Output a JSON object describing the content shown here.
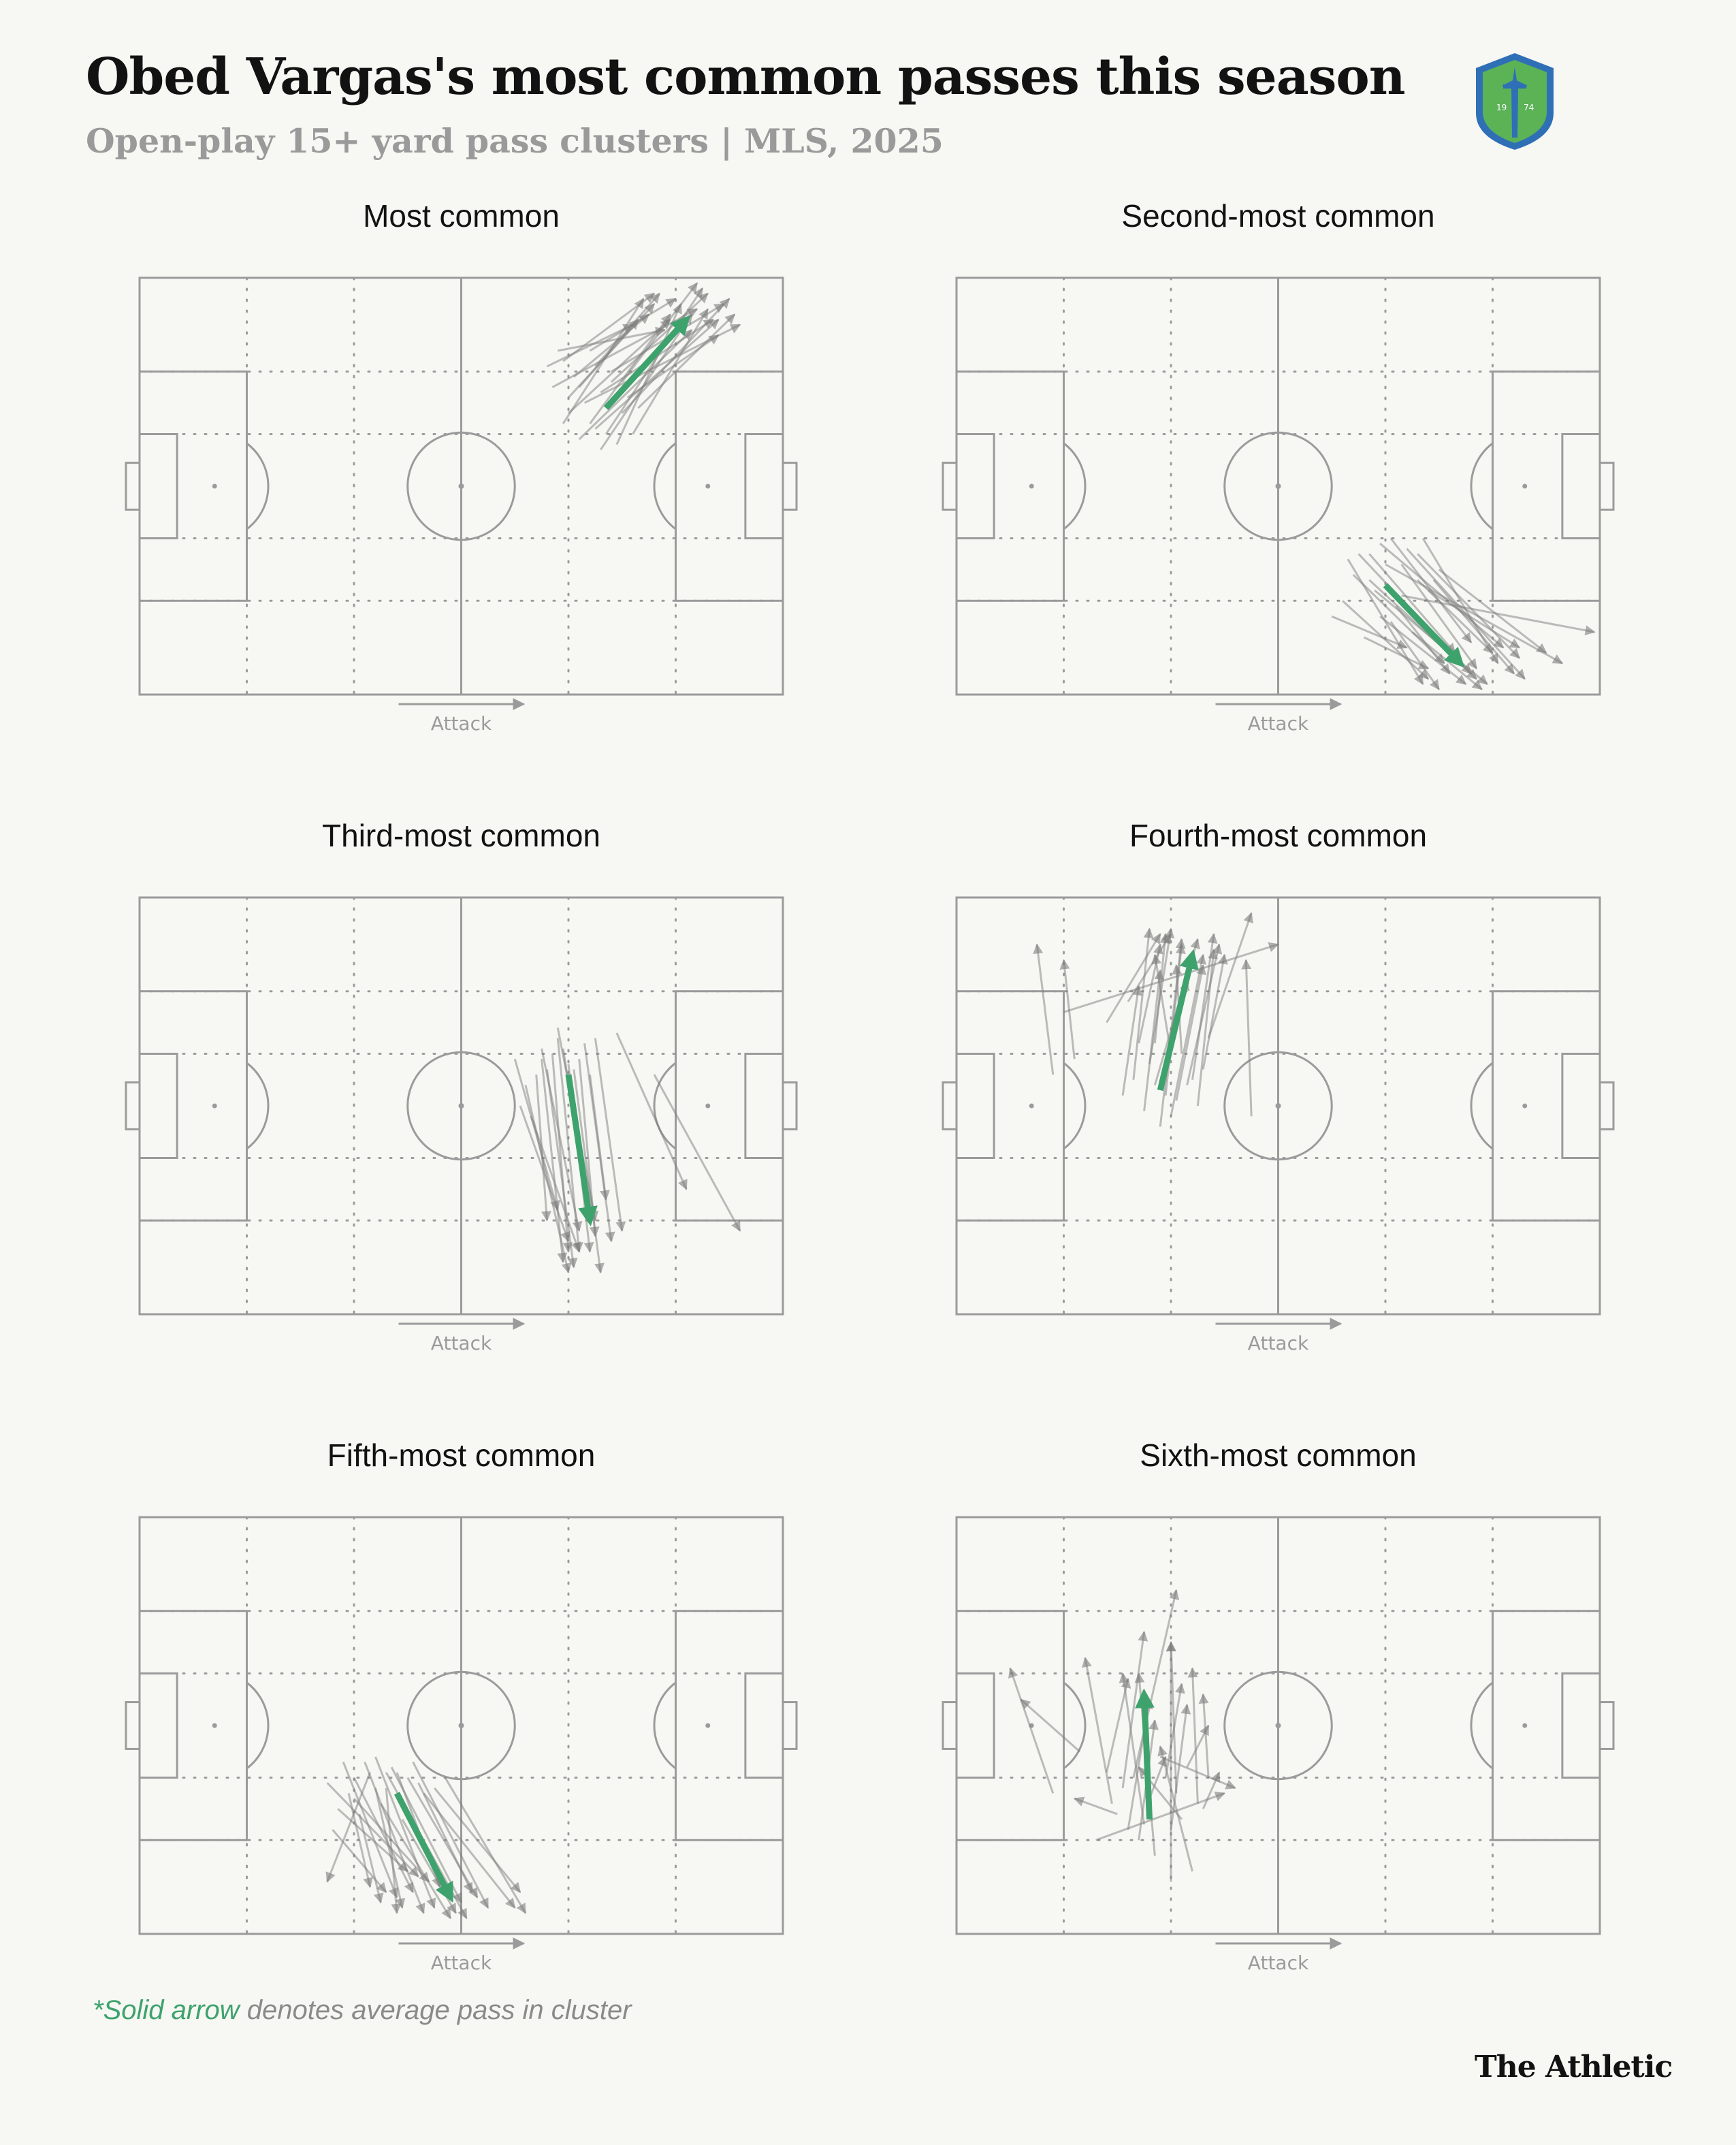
{
  "header": {
    "title": "Obed Vargas's most common passes this season",
    "subtitle": "Open-play 15+ yard pass clusters | MLS, 2025"
  },
  "logo": {
    "icon": "seattle-sounders-crest-icon",
    "year_left": "19",
    "year_right": "74"
  },
  "colors": {
    "accent": "#3ea26d",
    "pass": "#7d7d7d",
    "pitch_line": "#9b9b9b",
    "background": "#f7f7f3",
    "subtitle": "#9a9a9a"
  },
  "pitch_label": "Attack",
  "footnote": {
    "accent_text": "*Solid arrow",
    "rest_text": " denotes average pass in cluster"
  },
  "brand": "The Athletic",
  "chart_data": {
    "type": "pass-map",
    "pitch": {
      "length": 120,
      "width": 80,
      "attack_direction": "left-to-right"
    },
    "panels": [
      {
        "title": "Most common",
        "average": [
          87,
          55,
          102,
          72
        ],
        "passes": [
          [
            76,
            63,
            92,
            71
          ],
          [
            80,
            57,
            96,
            75
          ],
          [
            84,
            52,
            99,
            73
          ],
          [
            88,
            60,
            106,
            77
          ],
          [
            82,
            49,
            103,
            70
          ],
          [
            90,
            54,
            110,
            76
          ],
          [
            78,
            66,
            98,
            70
          ],
          [
            86,
            58,
            107,
            72
          ],
          [
            79,
            52,
            94,
            76
          ],
          [
            92,
            50,
            106,
            74
          ],
          [
            85,
            63,
            97,
            77
          ],
          [
            83,
            56,
            112,
            71
          ],
          [
            89,
            48,
            101,
            75
          ],
          [
            77,
            59,
            104,
            74
          ],
          [
            91,
            57,
            108,
            69
          ],
          [
            81,
            61,
            95,
            73
          ],
          [
            87,
            50,
            105,
            78
          ],
          [
            84,
            66,
            100,
            76
          ],
          [
            93,
            55,
            111,
            73
          ],
          [
            80,
            54,
            99,
            72
          ],
          [
            88,
            62,
            109,
            75
          ],
          [
            82,
            59,
            93,
            72
          ],
          [
            86,
            47,
            103,
            73
          ],
          [
            90,
            60,
            104,
            79
          ],
          [
            79,
            64,
            96,
            77
          ],
          [
            85,
            51,
            108,
            72
          ]
        ]
      },
      {
        "title": "Second-most common",
        "average": [
          80,
          21,
          94,
          6
        ],
        "passes": [
          [
            72,
            18,
            88,
            3
          ],
          [
            77,
            27,
            93,
            8
          ],
          [
            83,
            25,
            97,
            5
          ],
          [
            79,
            15,
            95,
            2
          ],
          [
            86,
            22,
            100,
            8
          ],
          [
            74,
            23,
            91,
            6
          ],
          [
            81,
            30,
            96,
            10
          ],
          [
            88,
            20,
            105,
            9
          ],
          [
            76,
            11,
            88,
            5
          ],
          [
            84,
            28,
            106,
            3
          ],
          [
            70,
            15,
            84,
            9
          ],
          [
            90,
            24,
            110,
            8
          ],
          [
            78,
            20,
            99,
            2
          ],
          [
            82,
            17,
            92,
            4
          ],
          [
            87,
            30,
            101,
            6
          ],
          [
            75,
            27,
            96,
            4
          ],
          [
            85,
            12,
            98,
            1
          ],
          [
            80,
            25,
            113,
            6
          ],
          [
            89,
            22,
            104,
            4
          ],
          [
            73,
            26,
            87,
            2
          ],
          [
            83,
            19,
            119,
            12
          ],
          [
            77,
            22,
            97,
            3
          ],
          [
            86,
            27,
            105,
            7
          ],
          [
            79,
            29,
            102,
            9
          ],
          [
            81,
            14,
            90,
            1
          ]
        ]
      },
      {
        "title": "Third-most common",
        "average": [
          80,
          46,
          84,
          18
        ],
        "passes": [
          [
            70,
            49,
            78,
            20
          ],
          [
            75,
            51,
            82,
            16
          ],
          [
            80,
            48,
            84,
            12
          ],
          [
            72,
            44,
            80,
            8
          ],
          [
            78,
            55,
            85,
            18
          ],
          [
            83,
            52,
            88,
            14
          ],
          [
            74,
            46,
            76,
            18
          ],
          [
            81,
            47,
            86,
            8
          ],
          [
            89,
            54,
            102,
            24
          ],
          [
            77,
            50,
            80,
            12
          ],
          [
            85,
            53,
            90,
            16
          ],
          [
            73,
            38,
            82,
            12
          ],
          [
            79,
            51,
            84,
            18
          ],
          [
            76,
            47,
            81,
            9
          ],
          [
            82,
            49,
            85,
            15
          ],
          [
            71,
            40,
            80,
            14
          ],
          [
            96,
            46,
            112,
            16
          ],
          [
            78,
            53,
            82,
            12
          ],
          [
            84,
            46,
            87,
            22
          ],
          [
            75,
            49,
            79,
            10
          ]
        ]
      },
      {
        "title": "Fourth-most common",
        "average": [
          38,
          43,
          44,
          69
        ],
        "passes": [
          [
            36,
            48,
            40,
            74
          ],
          [
            39,
            42,
            42,
            71
          ],
          [
            42,
            50,
            41,
            67
          ],
          [
            44,
            45,
            48,
            73
          ],
          [
            34,
            52,
            38,
            71
          ],
          [
            40,
            38,
            46,
            69
          ],
          [
            37,
            44,
            45,
            72
          ],
          [
            45,
            40,
            48,
            70
          ],
          [
            33,
            45,
            36,
            74
          ],
          [
            41,
            41,
            46,
            67
          ],
          [
            20,
            58,
            60,
            71
          ],
          [
            18,
            46,
            15,
            71
          ],
          [
            22,
            49,
            20,
            68
          ],
          [
            28,
            56,
            38,
            73
          ],
          [
            32,
            60,
            40,
            73
          ],
          [
            38,
            36,
            42,
            72
          ],
          [
            40,
            50,
            37,
            69
          ],
          [
            47,
            53,
            55,
            77
          ],
          [
            35,
            39,
            38,
            66
          ],
          [
            43,
            44,
            49,
            71
          ],
          [
            55,
            38,
            54,
            68
          ],
          [
            39,
            48,
            43,
            64
          ],
          [
            37,
            52,
            39,
            73
          ],
          [
            46,
            47,
            50,
            69
          ],
          [
            31,
            42,
            34,
            63
          ]
        ]
      },
      {
        "title": "Fifth-most common",
        "average": [
          48,
          27,
          58,
          7
        ],
        "passes": [
          [
            40,
            30,
            51,
            8
          ],
          [
            44,
            28,
            49,
            5
          ],
          [
            48,
            31,
            56,
            9
          ],
          [
            36,
            20,
            46,
            8
          ],
          [
            42,
            33,
            53,
            4
          ],
          [
            50,
            30,
            63,
            7
          ],
          [
            45,
            25,
            58,
            3
          ],
          [
            38,
            33,
            48,
            7
          ],
          [
            53,
            27,
            70,
            5
          ],
          [
            47,
            32,
            60,
            6
          ],
          [
            35,
            29,
            52,
            11
          ],
          [
            41,
            23,
            45,
            6
          ],
          [
            55,
            28,
            71,
            8
          ],
          [
            46,
            31,
            61,
            3
          ],
          [
            39,
            27,
            43,
            9
          ],
          [
            51,
            33,
            65,
            5
          ],
          [
            37,
            24,
            50,
            12
          ],
          [
            49,
            22,
            59,
            4
          ],
          [
            43,
            31,
            35,
            10
          ],
          [
            52,
            29,
            62,
            8
          ],
          [
            57,
            30,
            72,
            4
          ],
          [
            44,
            34,
            55,
            5
          ],
          [
            40,
            26,
            54,
            10
          ],
          [
            46,
            28,
            48,
            4
          ]
        ]
      },
      {
        "title": "Sixth-most common",
        "average": [
          36,
          22,
          35,
          46
        ],
        "passes": [
          [
            31,
            28,
            35,
            58
          ],
          [
            39,
            30,
            42,
            48
          ],
          [
            45,
            25,
            44,
            51
          ],
          [
            32,
            20,
            36,
            45
          ],
          [
            37,
            15,
            34,
            50
          ],
          [
            41,
            27,
            40,
            56
          ],
          [
            28,
            31,
            32,
            49
          ],
          [
            34,
            18,
            37,
            41
          ],
          [
            43,
            32,
            47,
            40
          ],
          [
            36,
            26,
            39,
            34
          ],
          [
            40,
            20,
            43,
            44
          ],
          [
            18,
            27,
            10,
            51
          ],
          [
            23,
            35,
            12,
            45
          ],
          [
            29,
            25,
            24,
            53
          ],
          [
            47,
            30,
            46,
            46
          ],
          [
            42,
            22,
            34,
            32
          ],
          [
            38,
            34,
            52,
            28
          ],
          [
            26,
            18,
            50,
            27
          ],
          [
            44,
            12,
            38,
            36
          ],
          [
            35,
            21,
            31,
            50
          ],
          [
            40,
            10,
            40,
            56
          ],
          [
            33,
            30,
            41,
            66
          ],
          [
            46,
            24,
            49,
            31
          ],
          [
            30,
            23,
            22,
            26
          ]
        ]
      }
    ]
  }
}
